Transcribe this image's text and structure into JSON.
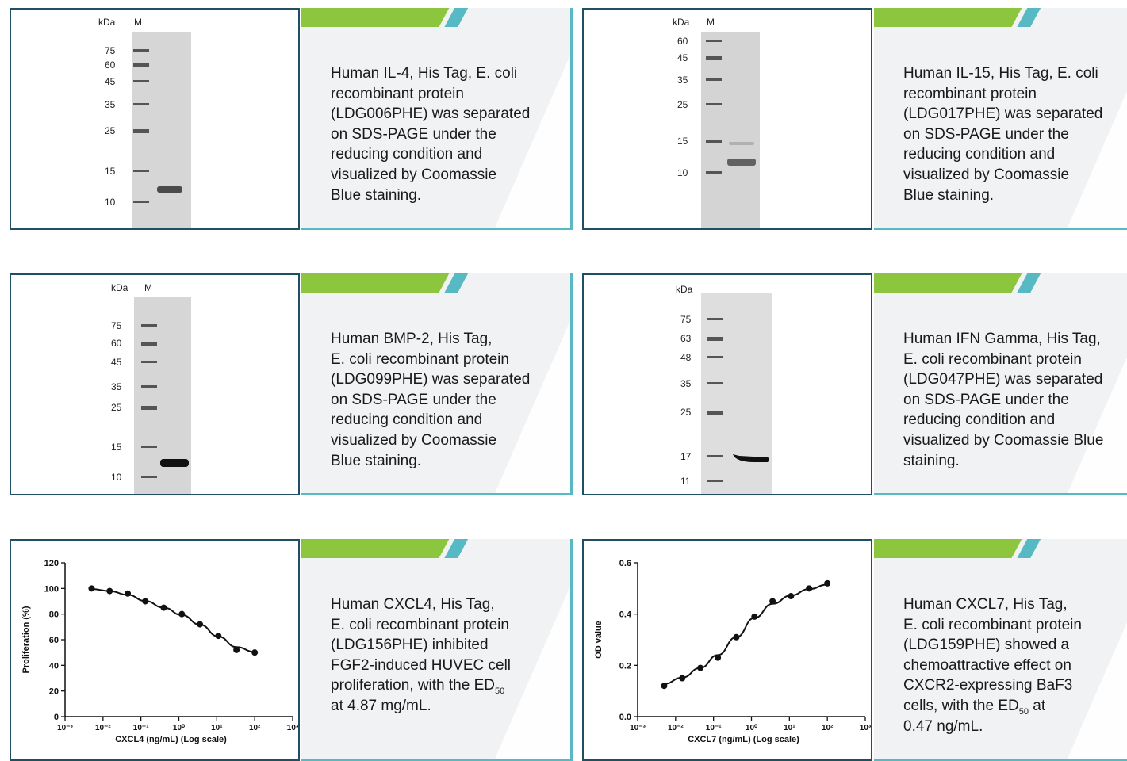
{
  "cards": [
    {
      "id": "il4",
      "gel": {
        "header_kda": "kDa",
        "header_m": "M",
        "markers": [
          "75",
          "60",
          "45",
          "35",
          "25",
          "15",
          "10"
        ]
      },
      "desc": [
        "Human IL-4, His Tag, E. coli",
        "recombinant protein",
        "(LDG006PHE) was separated",
        "on SDS-PAGE under the",
        "reducing condition and",
        "visualized by Coomassie",
        "Blue staining."
      ]
    },
    {
      "id": "il15",
      "gel": {
        "header_kda": "kDa",
        "header_m": "M",
        "markers": [
          "60",
          "45",
          "35",
          "25",
          "15",
          "10"
        ]
      },
      "desc": [
        "Human IL-15, His Tag, E. coli",
        "recombinant protein",
        "(LDG017PHE) was separated",
        "on SDS-PAGE under the",
        "reducing condition and",
        "visualized by Coomassie",
        "Blue staining."
      ]
    },
    {
      "id": "bmp2",
      "gel": {
        "header_kda": "kDa",
        "header_m": "M",
        "markers": [
          "75",
          "60",
          "45",
          "35",
          "25",
          "15",
          "10"
        ]
      },
      "desc": [
        "Human BMP-2, His Tag,",
        "E. coli recombinant protein",
        "(LDG099PHE) was separated",
        "on SDS-PAGE under the",
        "reducing condition and",
        "visualized by Coomassie",
        "Blue staining."
      ]
    },
    {
      "id": "ifng",
      "gel": {
        "header_kda": "kDa",
        "header_m": "",
        "markers": [
          "75",
          "63",
          "48",
          "35",
          "25",
          "17",
          "11"
        ]
      },
      "desc": [
        "Human IFN Gamma, His Tag,",
        "E. coli recombinant protein",
        "(LDG047PHE) was separated",
        "on SDS-PAGE under the",
        "reducing condition and",
        "visualized by Coomassie Blue",
        "staining."
      ]
    },
    {
      "id": "cxcl4",
      "desc": [
        "Human CXCL4, His Tag,",
        "E. coli recombinant protein",
        "(LDG156PHE) inhibited",
        "FGF2-induced HUVEC cell",
        "proliferation, with the ED"
      ],
      "desc_sub": "50",
      "desc_tail": "at 4.87 mg/mL."
    },
    {
      "id": "cxcl7",
      "desc": [
        "Human CXCL7, His Tag,",
        "E. coli recombinant protein",
        "(LDG159PHE) showed a",
        "chemoattractive effect on",
        "CXCR2-expressing BaF3",
        "cells, with the ED"
      ],
      "desc_sub": "50",
      "desc_sub_after": " at",
      "desc_tail": "0.47 ng/mL."
    }
  ],
  "chart_data": [
    {
      "type": "scatter",
      "title": "",
      "xlabel": "CXCL4 (ng/mL) (Log scale)",
      "ylabel": "Proliferation (%)",
      "x_scale": "log",
      "x_ticks": [
        "10-3",
        "10-2",
        "10-1",
        "100",
        "101",
        "102",
        "103"
      ],
      "y_ticks": [
        "0",
        "20",
        "40",
        "60",
        "80",
        "100",
        "120"
      ],
      "ylim": [
        0,
        120
      ],
      "xlim": [
        0.001,
        1000
      ],
      "series": [
        {
          "x": [
            0.005,
            0.015,
            0.045,
            0.13,
            0.4,
            1.2,
            3.6,
            11,
            33,
            100
          ],
          "y": [
            100,
            98,
            96,
            90,
            85,
            80,
            72,
            63,
            52,
            50
          ]
        }
      ],
      "fit": "sigmoid"
    },
    {
      "type": "scatter",
      "title": "",
      "xlabel": "CXCL7 (ng/mL) (Log scale)",
      "ylabel": "OD value",
      "x_scale": "log",
      "x_ticks": [
        "10-3",
        "10-2",
        "10-1",
        "100",
        "101",
        "102",
        "103"
      ],
      "y_ticks": [
        "0.0",
        "0.2",
        "0.4",
        "0.6"
      ],
      "ylim": [
        0,
        0.6
      ],
      "xlim": [
        0.001,
        1000
      ],
      "series": [
        {
          "x": [
            0.005,
            0.015,
            0.045,
            0.13,
            0.4,
            1.2,
            3.6,
            11,
            33,
            100
          ],
          "y": [
            0.12,
            0.15,
            0.19,
            0.23,
            0.31,
            0.39,
            0.45,
            0.47,
            0.5,
            0.52
          ]
        }
      ],
      "fit": "sigmoid"
    }
  ],
  "colors": {
    "green": "#8cc63f",
    "teal": "#56b9c4",
    "navy": "#1f4f63",
    "panel": "#f1f2f3"
  }
}
